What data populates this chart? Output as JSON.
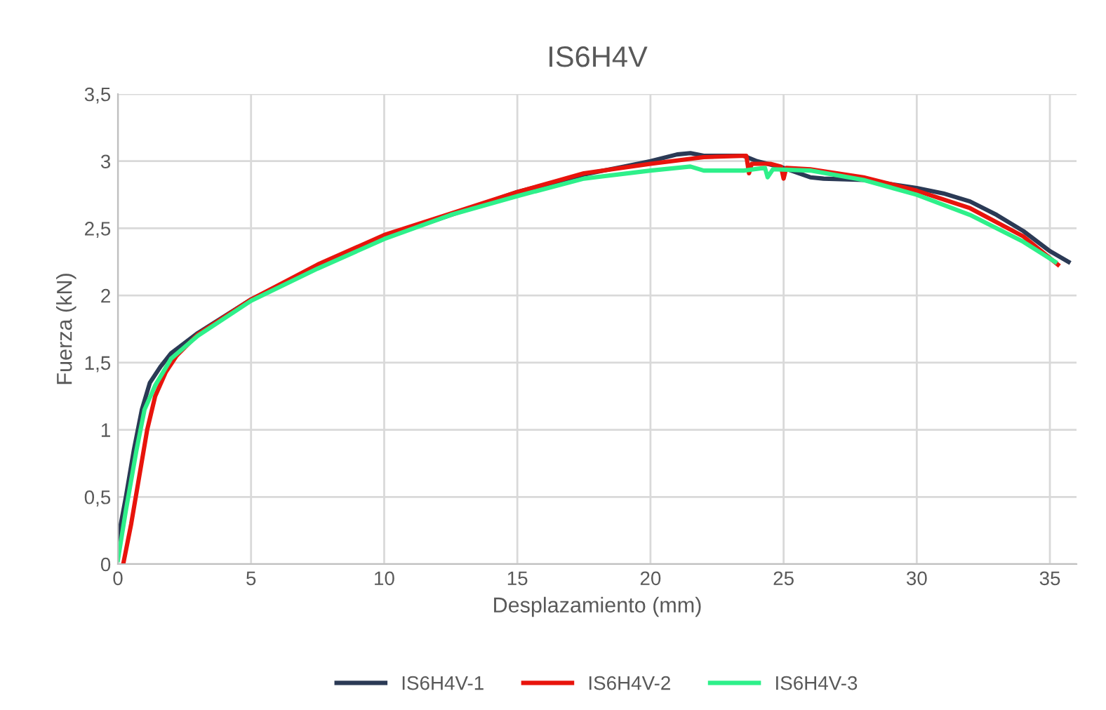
{
  "chart_data": {
    "type": "line",
    "title": "IS6H4V",
    "xlabel": "Desplazamiento (mm)",
    "ylabel": "Fuerza (kN)",
    "xlim": [
      0,
      36
    ],
    "xticks": [
      0,
      5,
      10,
      15,
      20,
      25,
      30,
      35
    ],
    "ylim": [
      0,
      3.5
    ],
    "yticks": [
      0,
      {
        "value": 0.5,
        "label": "0,5"
      },
      1,
      {
        "value": 1.5,
        "label": "1,5"
      },
      2,
      {
        "value": 2.5,
        "label": "2,5"
      },
      3,
      {
        "value": 3.5,
        "label": "3,5"
      }
    ],
    "grid": true,
    "legend": "bottom",
    "marker": "none",
    "line_style": "solid",
    "series": [
      {
        "name": "IS6H4V-1",
        "color": "#2b3a55",
        "x": [
          0,
          0.3,
          0.6,
          0.9,
          1.2,
          1.6,
          2,
          3,
          5,
          7.5,
          10,
          12.5,
          15,
          17.5,
          19,
          20,
          21,
          21.5,
          22,
          23.5,
          24,
          25,
          26,
          26.5,
          28,
          30,
          31,
          32,
          33,
          34,
          35,
          35.7
        ],
        "values": [
          0.18,
          0.5,
          0.85,
          1.15,
          1.35,
          1.47,
          1.57,
          1.72,
          1.97,
          2.22,
          2.43,
          2.6,
          2.77,
          2.9,
          2.96,
          3.0,
          3.05,
          3.06,
          3.04,
          3.04,
          3.0,
          2.95,
          2.88,
          2.87,
          2.86,
          2.8,
          2.76,
          2.7,
          2.6,
          2.48,
          2.33,
          2.25
        ]
      },
      {
        "name": "IS6H4V-2",
        "color": "#e8140c",
        "x": [
          0.2,
          0.5,
          0.8,
          1.1,
          1.4,
          1.8,
          2.2,
          3,
          5,
          7.5,
          10,
          12.5,
          15,
          17.5,
          20,
          22,
          23.6,
          23.7,
          23.8,
          24.5,
          24.9,
          25,
          25.1,
          26,
          28,
          30,
          32,
          34,
          35.3
        ],
        "values": [
          0,
          0.3,
          0.65,
          1.0,
          1.25,
          1.43,
          1.55,
          1.71,
          1.97,
          2.23,
          2.45,
          2.61,
          2.77,
          2.91,
          2.98,
          3.03,
          3.04,
          2.91,
          2.98,
          2.98,
          2.96,
          2.87,
          2.95,
          2.94,
          2.88,
          2.78,
          2.65,
          2.44,
          2.23
        ]
      },
      {
        "name": "IS6H4V-3",
        "color": "#2ef08a",
        "x": [
          0,
          0.3,
          0.7,
          1.0,
          1.4,
          2,
          3,
          5,
          7.5,
          10,
          12.5,
          15,
          17.5,
          20,
          21.5,
          22,
          23.5,
          24.3,
          24.4,
          24.6,
          26,
          28,
          30,
          32,
          34,
          35.2
        ],
        "values": [
          0.03,
          0.4,
          0.85,
          1.15,
          1.33,
          1.53,
          1.7,
          1.96,
          2.2,
          2.42,
          2.6,
          2.74,
          2.87,
          2.93,
          2.96,
          2.93,
          2.93,
          2.95,
          2.88,
          2.94,
          2.93,
          2.86,
          2.75,
          2.6,
          2.4,
          2.25
        ]
      }
    ]
  }
}
